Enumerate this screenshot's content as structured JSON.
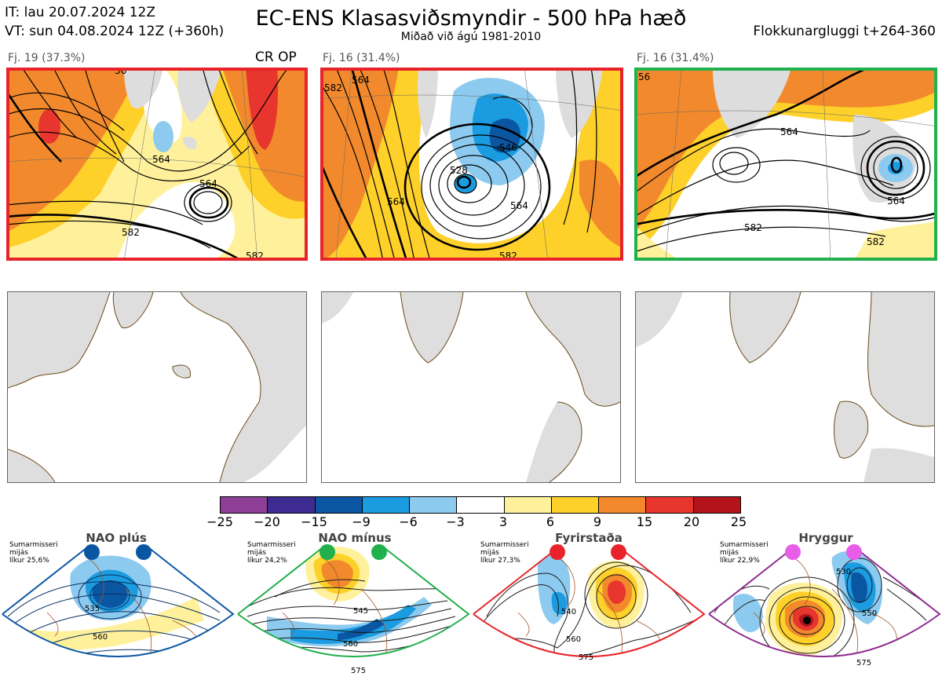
{
  "header": {
    "it_line": "IT: lau 20.07.2024 12Z",
    "vt_line": "VT: sun 04.08.2024 12Z  (+360h)",
    "title": "EC-ENS Klasasviðsmyndir - 500 hPa hæð",
    "subtitle": "Miðað við ágú 1981-2010",
    "window": "Flokkunargluggi t+264-360"
  },
  "panels": [
    {
      "label": "Fj. 19 (37.3%)",
      "tag": "CR OP",
      "frame_color": "#e8242a",
      "contours": [
        "564",
        "564",
        "582",
        "582",
        "56"
      ]
    },
    {
      "label": "Fj. 16 (31.4%)",
      "tag": "",
      "frame_color": "#e8242a",
      "contours": [
        "546",
        "528",
        "564",
        "564",
        "582",
        "582",
        "564"
      ]
    },
    {
      "label": "Fj. 16 (31.4%)",
      "tag": "",
      "frame_color": "#21b04b",
      "contours": [
        "564",
        "564",
        "582",
        "582",
        "56"
      ]
    }
  ],
  "colorbar": {
    "ticks": [
      "−25",
      "−20",
      "−15",
      "−9",
      "−6",
      "−3",
      "3",
      "6",
      "9",
      "15",
      "20",
      "25"
    ],
    "colors": [
      "#8e3f97",
      "#3d2b91",
      "#0b56a3",
      "#1b9be0",
      "#8ccaef",
      "#ffffff",
      "#fff19b",
      "#fdd02a",
      "#f28a2d",
      "#e8362f",
      "#b3141b"
    ]
  },
  "regimes": [
    {
      "name": "NAO plús",
      "season": "Sumarmisseri",
      "period": "mijás",
      "likelihood": "líkur 25,6%",
      "color": "#0b56a3",
      "contours": [
        "535",
        "560"
      ]
    },
    {
      "name": "NAO mínus",
      "season": "Sumarmisseri",
      "period": "mijás",
      "likelihood": "líkur 24,2%",
      "color": "#21b04b",
      "contours": [
        "545",
        "560",
        "575"
      ]
    },
    {
      "name": "Fyrirstaða",
      "season": "Sumarmisseri",
      "period": "mijás",
      "likelihood": "líkur 27,3%",
      "color": "#e8242a",
      "contours": [
        "540",
        "560",
        "575"
      ]
    },
    {
      "name": "Hryggur",
      "season": "Sumarmisseri",
      "period": "mijás",
      "likelihood": "líkur 22,9%",
      "color": "#8e2b8f",
      "contours": [
        "530",
        "550",
        "575"
      ]
    }
  ]
}
